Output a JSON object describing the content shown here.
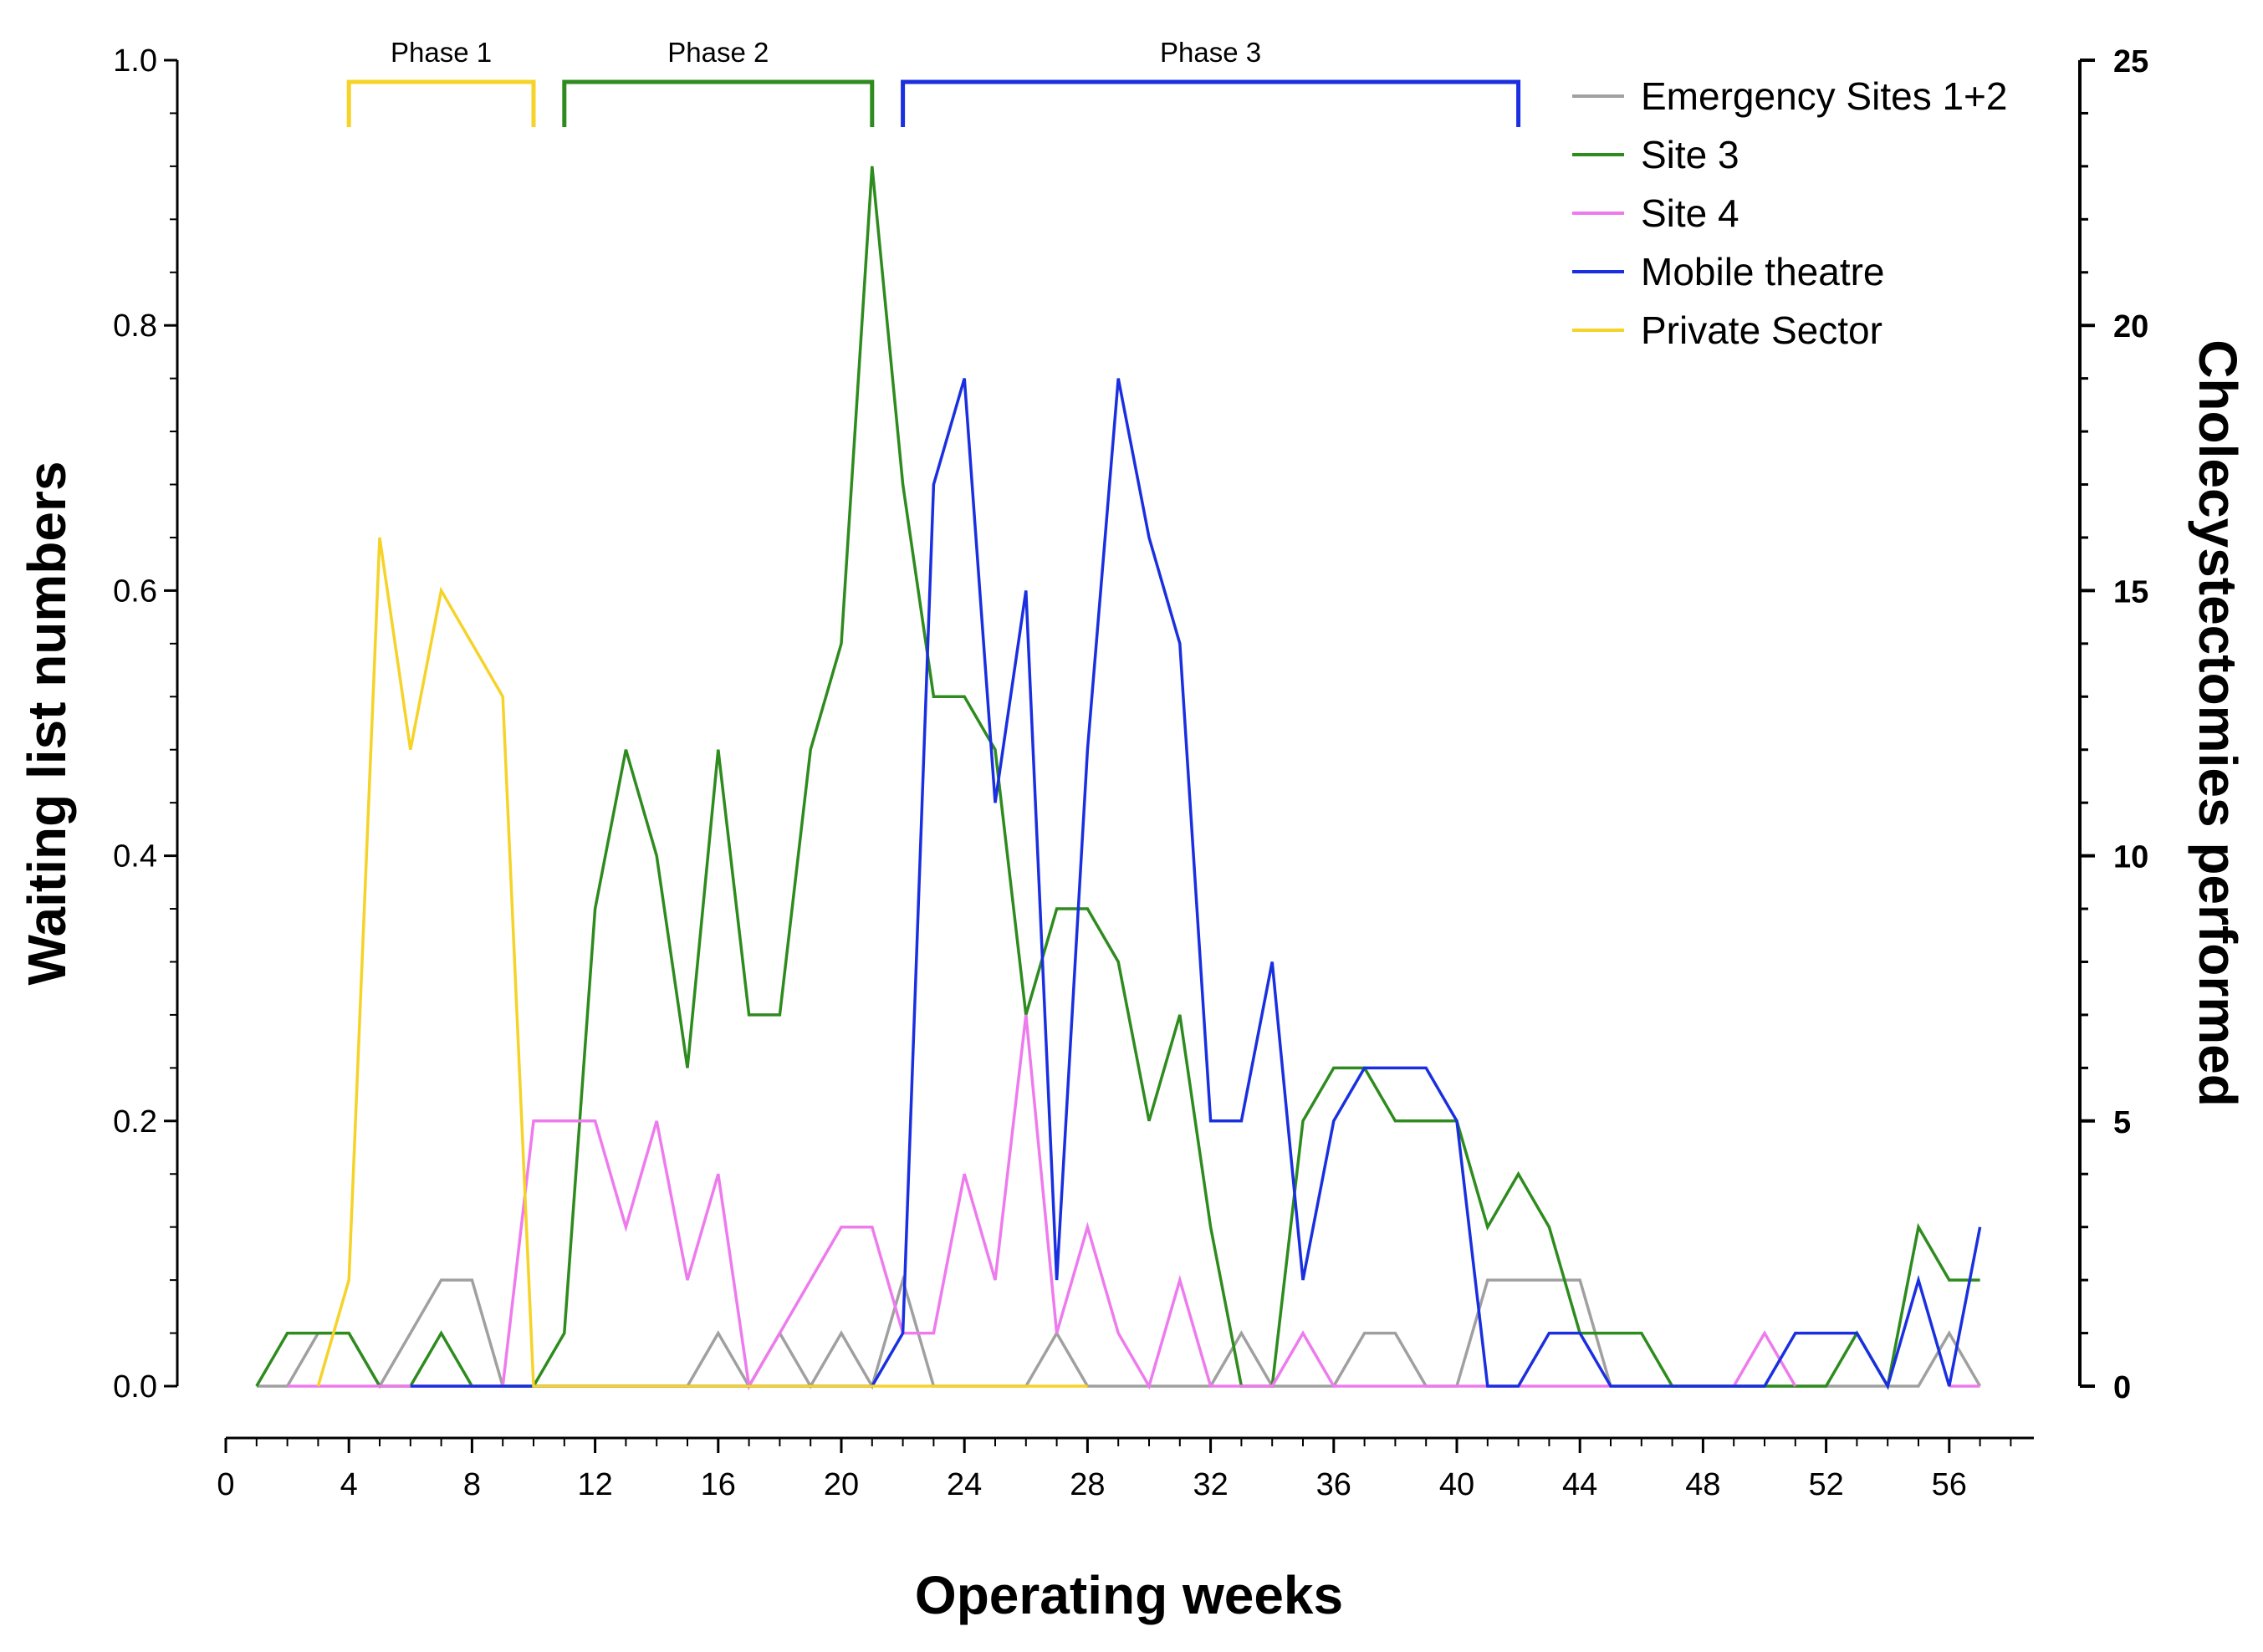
{
  "chart_data": {
    "type": "line",
    "xlabel": "Operating weeks",
    "ylabel": "Waiting list numbers",
    "y2label": "Cholecystectomies performed",
    "xlim": [
      0,
      57
    ],
    "ylim": [
      0,
      1.0
    ],
    "y2lim": [
      0,
      25
    ],
    "xticks": [
      "0",
      "4",
      "8",
      "12",
      "16",
      "20",
      "24",
      "28",
      "32",
      "36",
      "40",
      "44",
      "48",
      "52",
      "56"
    ],
    "yticks": [
      "0.0",
      "0.2",
      "0.4",
      "0.6",
      "0.8",
      "1.0"
    ],
    "y2ticks": [
      "0",
      "5",
      "10",
      "15",
      "20",
      "25"
    ],
    "phases": [
      {
        "label": "Phase 1",
        "start": 4,
        "end": 10,
        "color": "#F5D328"
      },
      {
        "label": "Phase 2",
        "start": 11,
        "end": 21,
        "color": "#2E8B1E"
      },
      {
        "label": "Phase 3",
        "start": 22,
        "end": 42,
        "color": "#1A2FE0"
      }
    ],
    "legend_position": "top-right",
    "series": [
      {
        "name": "Emergency Sites 1+2",
        "color": "#A0A0A0",
        "x": [
          1,
          2,
          3,
          4,
          5,
          6,
          7,
          8,
          9,
          10,
          11,
          12,
          13,
          14,
          15,
          16,
          17,
          18,
          19,
          20,
          21,
          22,
          23,
          24,
          25,
          26,
          27,
          28,
          29,
          30,
          31,
          32,
          33,
          34,
          35,
          36,
          37,
          38,
          39,
          40,
          41,
          42,
          43,
          44,
          45,
          46,
          47,
          48,
          49,
          50,
          51,
          52,
          53,
          54,
          55,
          56,
          57
        ],
        "values": [
          0,
          0,
          1,
          1,
          0,
          1,
          2,
          2,
          0,
          0,
          0,
          0,
          0,
          0,
          0,
          1,
          0,
          1,
          0,
          1,
          0,
          2,
          0,
          0,
          0,
          0,
          1,
          0,
          0,
          0,
          0,
          0,
          1,
          0,
          0,
          0,
          1,
          1,
          0,
          0,
          2,
          2,
          2,
          2,
          0,
          0,
          0,
          0,
          0,
          0,
          0,
          0,
          0,
          0,
          0,
          1,
          0
        ]
      },
      {
        "name": "Site 3",
        "color": "#2E8B1E",
        "x": [
          1,
          2,
          3,
          4,
          5,
          6,
          7,
          8,
          9,
          10,
          11,
          12,
          13,
          14,
          15,
          16,
          17,
          18,
          19,
          20,
          21,
          22,
          23,
          24,
          25,
          26,
          27,
          28,
          29,
          30,
          31,
          32,
          33,
          34,
          35,
          36,
          37,
          38,
          39,
          40,
          41,
          42,
          43,
          44,
          45,
          46,
          47,
          48,
          49,
          50,
          51,
          52,
          53,
          54,
          55,
          56,
          57
        ],
        "values": [
          0,
          1,
          1,
          1,
          0,
          0,
          1,
          0,
          0,
          0,
          1,
          9,
          12,
          10,
          6,
          12,
          7,
          7,
          12,
          14,
          23,
          17,
          13,
          13,
          12,
          7,
          9,
          9,
          8,
          5,
          7,
          3,
          0,
          0,
          5,
          6,
          6,
          5,
          5,
          5,
          3,
          4,
          3,
          1,
          1,
          1,
          0,
          0,
          0,
          0,
          0,
          0,
          1,
          0,
          3,
          2,
          2
        ]
      },
      {
        "name": "Site 4",
        "color": "#EE7BEE",
        "x": [
          1,
          2,
          3,
          4,
          5,
          6,
          7,
          8,
          9,
          10,
          11,
          12,
          13,
          14,
          15,
          16,
          17,
          18,
          19,
          20,
          21,
          22,
          23,
          24,
          25,
          26,
          27,
          28,
          29,
          30,
          31,
          32,
          33,
          34,
          35,
          36,
          37,
          38,
          39,
          40,
          41,
          42,
          43,
          44,
          45,
          46,
          47,
          48,
          49,
          50,
          51,
          52,
          53,
          54,
          55,
          56,
          57
        ],
        "values": [
          null,
          0,
          0,
          0,
          0,
          0,
          0,
          0,
          0,
          5,
          5,
          5,
          3,
          5,
          2,
          4,
          0,
          1,
          2,
          3,
          3,
          1,
          1,
          4,
          2,
          7,
          1,
          3,
          1,
          0,
          2,
          0,
          0,
          0,
          1,
          0,
          0,
          0,
          0,
          0,
          0,
          0,
          0,
          0,
          0,
          null,
          null,
          null,
          0,
          1,
          0,
          null,
          null,
          null,
          null,
          0,
          0
        ]
      },
      {
        "name": "Mobile theatre",
        "color": "#1A2FE0",
        "x": [
          6,
          7,
          8,
          15,
          16,
          17,
          18,
          19,
          20,
          21,
          22,
          23,
          24,
          25,
          26,
          27,
          28,
          29,
          30,
          31,
          32,
          33,
          34,
          35,
          36,
          37,
          38,
          39,
          40,
          41,
          42,
          43,
          44,
          45,
          50,
          51,
          52,
          53,
          54,
          55,
          56,
          57
        ],
        "values": [
          0,
          0,
          0,
          0,
          0,
          0,
          0,
          0,
          0,
          0,
          1,
          17,
          19,
          11,
          15,
          2,
          12,
          19,
          16,
          14,
          5,
          5,
          8,
          2,
          5,
          6,
          6,
          6,
          5,
          0,
          0,
          1,
          1,
          0,
          0,
          1,
          1,
          1,
          0,
          2,
          0,
          3
        ]
      },
      {
        "name": "Private Sector",
        "color": "#F5D328",
        "x": [
          3,
          4,
          5,
          6,
          7,
          8,
          9,
          10,
          22,
          23,
          26,
          27,
          28
        ],
        "values": [
          0,
          2,
          16,
          12,
          15,
          14,
          13,
          0,
          0,
          0,
          0,
          0,
          0
        ]
      }
    ]
  }
}
